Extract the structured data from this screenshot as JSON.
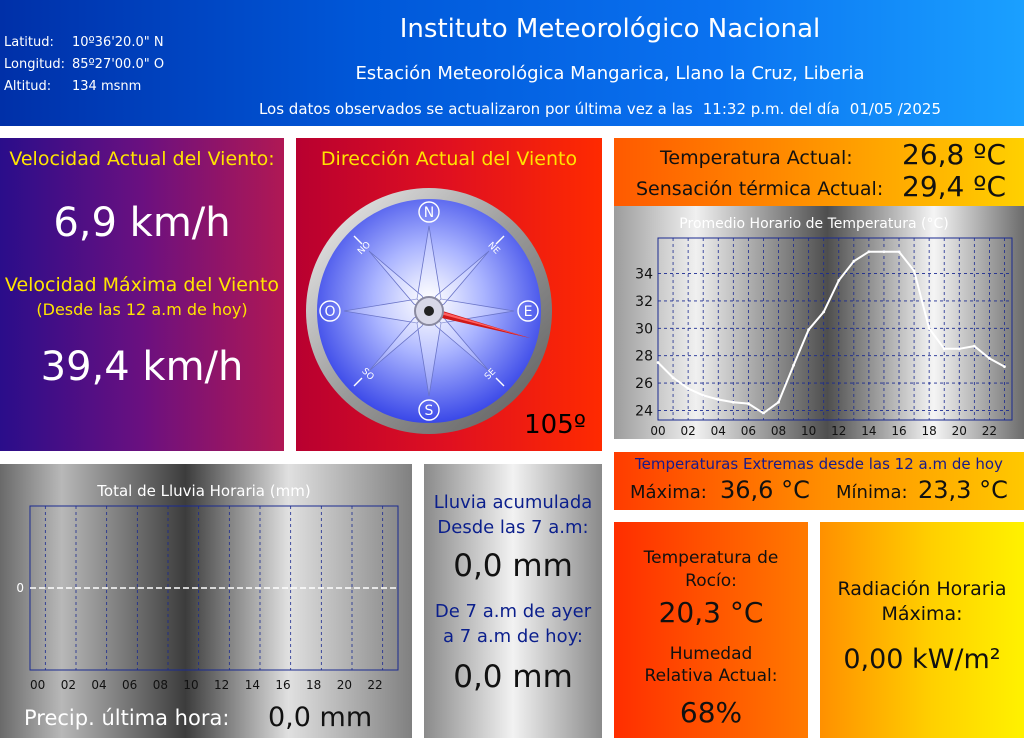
{
  "header": {
    "lat_label": "Latitud:",
    "lat_value": "10º36'20.0\" N",
    "lon_label": "Longitud:",
    "lon_value": "85º27'00.0\" O",
    "alt_label": "Altitud:",
    "alt_value": "134 msnm",
    "title": "Instituto Meteorológico Nacional",
    "subtitle": "Estación Meteorológica Mangarica, Llano la Cruz, Liberia",
    "update_text": "Los datos observados se actualizaron por última vez a las",
    "update_time": "11:32 p.m.",
    "update_day_label": "del día",
    "update_date": "01/05 /2025"
  },
  "wind": {
    "current_label": "Velocidad Actual del Viento:",
    "current_value": "6,9 km/h",
    "max_label": "Velocidad Máxima del Viento",
    "max_sublabel": "(Desde las 12 a.m de hoy)",
    "max_value": "39,4 km/h"
  },
  "direction": {
    "label": "Dirección Actual del Viento",
    "value": "105º",
    "degrees": 105,
    "cardinals": {
      "n": "N",
      "s": "S",
      "e": "E",
      "w": "O",
      "ne": "NE",
      "no": "NO",
      "se": "SE",
      "so": "SO"
    }
  },
  "temperature": {
    "current_label": "Temperatura Actual:",
    "current_value": "26,8 ºC",
    "feels_label": "Sensación térmica Actual:",
    "feels_value": "29,4 ºC",
    "extremes_label": "Temperaturas Extremas desde las 12 a.m de hoy",
    "max_label": "Máxima:",
    "max_value": "36,6 °C",
    "min_label": "Mínima:",
    "min_value": "23,3 °C"
  },
  "rain": {
    "accum_label_1": "Lluvia acumulada",
    "accum_label_2": "Desde las 7 a.m:",
    "accum_value": "0,0 mm",
    "yest_label_1": "De 7 a.m de ayer",
    "yest_label_2": "a 7 a.m de hoy:",
    "yest_value": "0,0 mm",
    "last_hour_label": "Precip. última hora:",
    "last_hour_value": "0,0 mm"
  },
  "dew": {
    "label_1": "Temperatura de",
    "label_2": "Rocío:",
    "value": "20,3 °C",
    "hum_label_1": "Humedad",
    "hum_label_2": "Relativa Actual:",
    "hum_value": "68%"
  },
  "radiation": {
    "label_1": "Radiación Horaria",
    "label_2": "Máxima:",
    "value": "0,00 kW/m²"
  },
  "chart_data": [
    {
      "type": "line",
      "title": "Promedio Horario de Temperatura (°C)",
      "x_ticks": [
        "00",
        "02",
        "04",
        "06",
        "08",
        "10",
        "12",
        "14",
        "16",
        "18",
        "20",
        "22"
      ],
      "y_ticks": [
        "24",
        "26",
        "28",
        "30",
        "32",
        "34"
      ],
      "ylim": [
        23.3,
        36.6
      ],
      "x": [
        0,
        1,
        2,
        3,
        4,
        5,
        6,
        7,
        8,
        9,
        10,
        11,
        12,
        13,
        14,
        15,
        16,
        17,
        18,
        19,
        20,
        21,
        22,
        23
      ],
      "values": [
        27.5,
        26.4,
        25.6,
        25.1,
        24.8,
        24.6,
        24.5,
        23.8,
        24.6,
        27.3,
        29.9,
        31.2,
        33.5,
        34.9,
        35.6,
        35.6,
        35.6,
        34.2,
        30.0,
        28.5,
        28.5,
        28.7,
        27.8,
        27.2
      ],
      "grid": true,
      "color": "#ffffff"
    },
    {
      "type": "bar",
      "title": "Total de Lluvia Horaria (mm)",
      "x_ticks": [
        "00",
        "02",
        "04",
        "06",
        "08",
        "10",
        "12",
        "14",
        "16",
        "18",
        "20",
        "22"
      ],
      "y_ticks": [
        "0"
      ],
      "values": [
        0,
        0,
        0,
        0,
        0,
        0,
        0,
        0,
        0,
        0,
        0,
        0,
        0,
        0,
        0,
        0,
        0,
        0,
        0,
        0,
        0,
        0,
        0,
        0
      ],
      "grid": true
    }
  ]
}
